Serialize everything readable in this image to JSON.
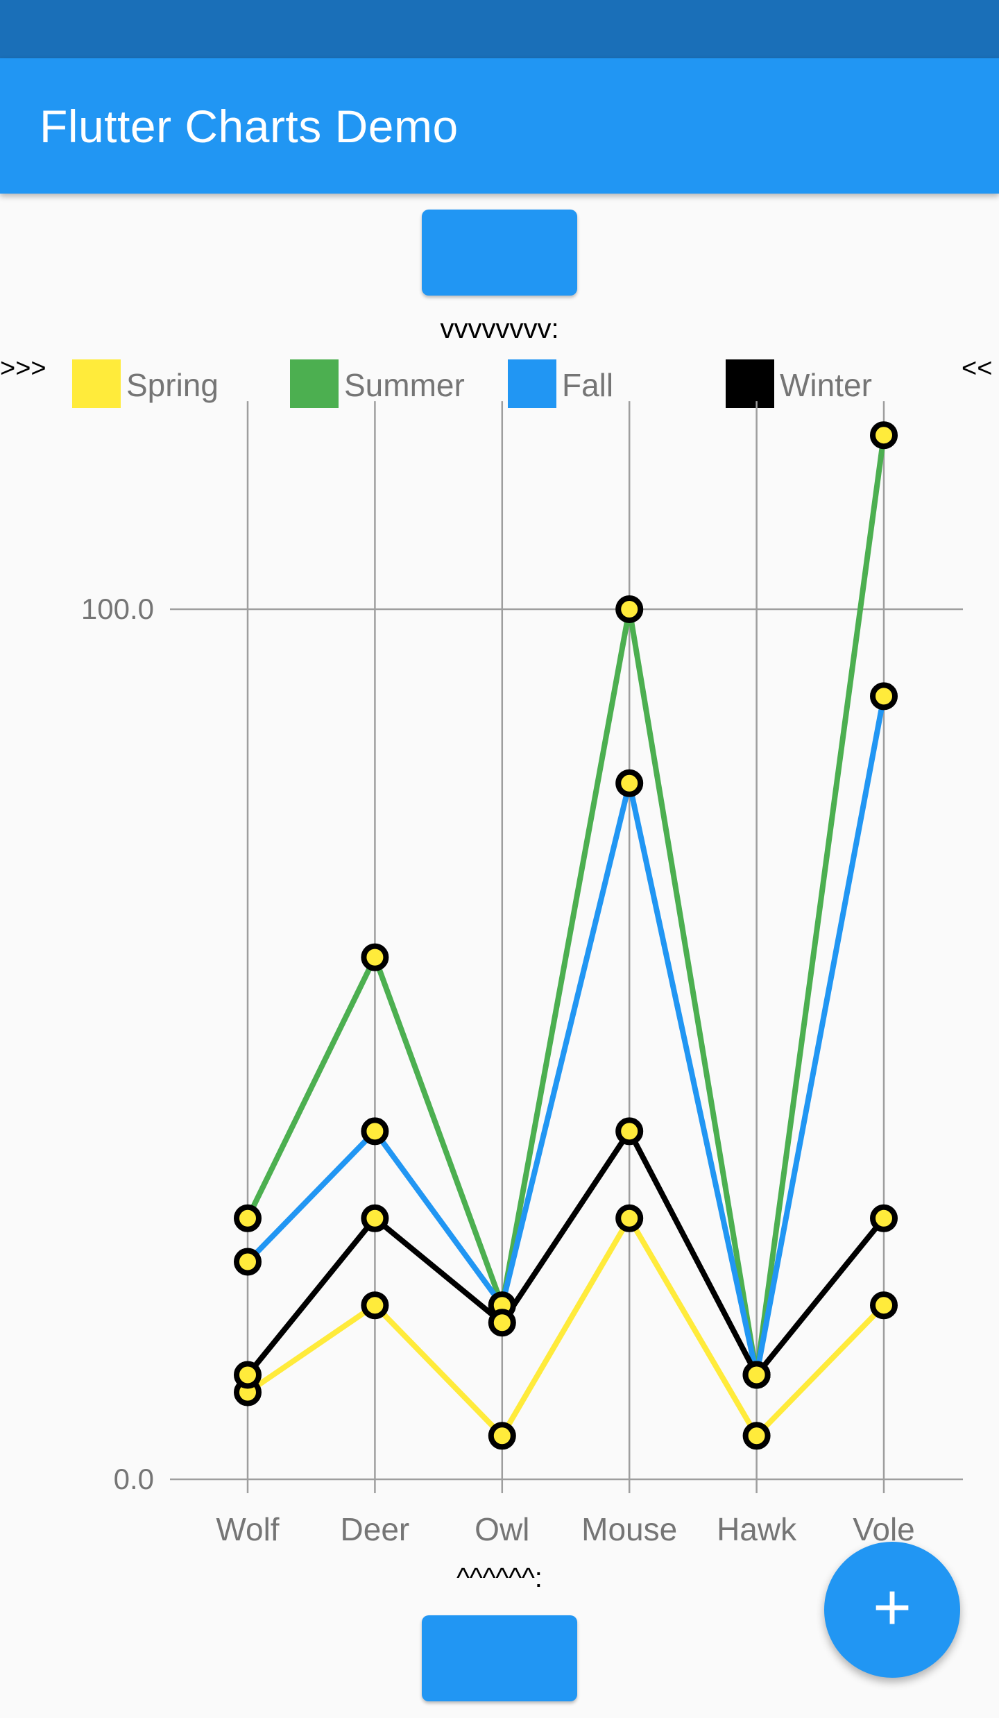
{
  "app_bar": {
    "title": "Flutter Charts Demo"
  },
  "captions": {
    "top": "vvvvvvvv:",
    "bottom": "^^^^^^:"
  },
  "edge_markers": {
    "left": ">>>",
    "right": "<<"
  },
  "colors": {
    "primary": "#2196f3",
    "status_bar": "#1a6fb8",
    "spring": "#ffeb3b",
    "summer": "#4caf50",
    "fall": "#2196f3",
    "winter": "#000000"
  },
  "fab": {
    "icon": "plus-icon",
    "label": "+"
  },
  "chart_data": {
    "type": "line",
    "categories": [
      "Wolf",
      "Deer",
      "Owl",
      "Mouse",
      "Hawk",
      "Vole"
    ],
    "series": [
      {
        "name": "Spring",
        "color": "#ffeb3b",
        "values": [
          10,
          20,
          5,
          30,
          5,
          20
        ]
      },
      {
        "name": "Summer",
        "color": "#4caf50",
        "values": [
          30,
          60,
          20,
          100,
          12,
          120
        ]
      },
      {
        "name": "Fall",
        "color": "#2196f3",
        "values": [
          25,
          40,
          20,
          80,
          12,
          90
        ]
      },
      {
        "name": "Winter",
        "color": "#000000",
        "values": [
          12,
          30,
          18,
          40,
          12,
          30
        ]
      }
    ],
    "y_tick_labels": [
      "0.0",
      "100.0"
    ],
    "y_ticks": [
      0,
      100
    ],
    "ylim": [
      0,
      122
    ],
    "grid": true,
    "legend_position": "top",
    "marker": {
      "fill": "#ffeb3b",
      "stroke": "#000000"
    }
  }
}
